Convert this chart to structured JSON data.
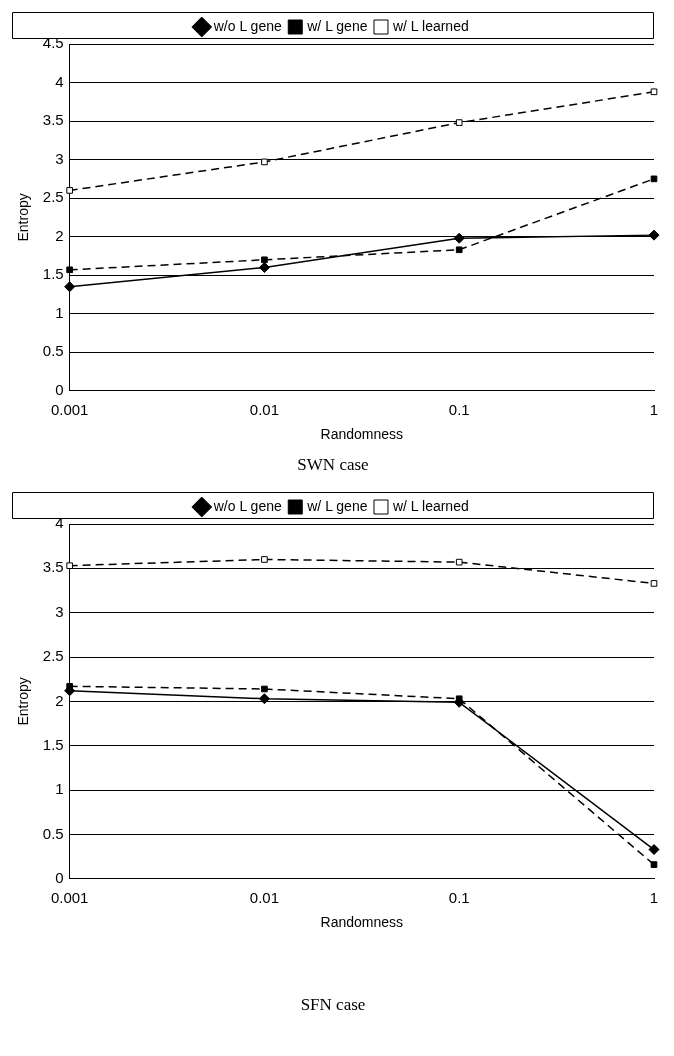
{
  "chart_data": [
    {
      "type": "line",
      "title": "SWN case",
      "xlabel": "Randomness",
      "ylabel": "Entropy",
      "categories": [
        "0.001",
        "0.01",
        "0.1",
        "1"
      ],
      "ylim": [
        0,
        4.5
      ],
      "yticks": [
        0,
        0.5,
        1,
        1.5,
        2,
        2.5,
        3,
        3.5,
        4,
        4.5
      ],
      "grid": "y",
      "legend": "top",
      "series": [
        {
          "name": "w/o L gene",
          "color": "#000000",
          "marker": "diamond",
          "line_style": "solid",
          "values": [
            1.35,
            1.6,
            1.98,
            2.02
          ]
        },
        {
          "name": "w/ L gene",
          "color": "#000000",
          "marker": "square",
          "line_style": "dashed",
          "values": [
            1.57,
            1.7,
            1.83,
            2.75
          ]
        },
        {
          "name": "w/ L learned",
          "color": "#000000",
          "marker": "square",
          "line_style": "dashed",
          "values": [
            2.6,
            2.97,
            3.48,
            3.88
          ]
        }
      ]
    },
    {
      "type": "line",
      "title": "SFN case",
      "xlabel": "Randomness",
      "ylabel": "Entropy",
      "categories": [
        "0.001",
        "0.01",
        "0.1",
        "1"
      ],
      "ylim": [
        0,
        4
      ],
      "yticks": [
        0,
        0.5,
        1,
        1.5,
        2,
        2.5,
        3,
        3.5,
        4
      ],
      "grid": "y",
      "legend": "top",
      "series": [
        {
          "name": "w/o L gene",
          "color": "#000000",
          "marker": "diamond",
          "line_style": "solid",
          "values": [
            2.12,
            2.03,
            1.99,
            0.33
          ]
        },
        {
          "name": "w/ L gene",
          "color": "#000000",
          "marker": "square",
          "line_style": "dashed",
          "values": [
            2.17,
            2.14,
            2.03,
            0.16
          ]
        },
        {
          "name": "w/ L learned",
          "color": "#000000",
          "marker": "square",
          "line_style": "dashed",
          "values": [
            3.53,
            3.6,
            3.57,
            3.33
          ]
        }
      ]
    }
  ]
}
